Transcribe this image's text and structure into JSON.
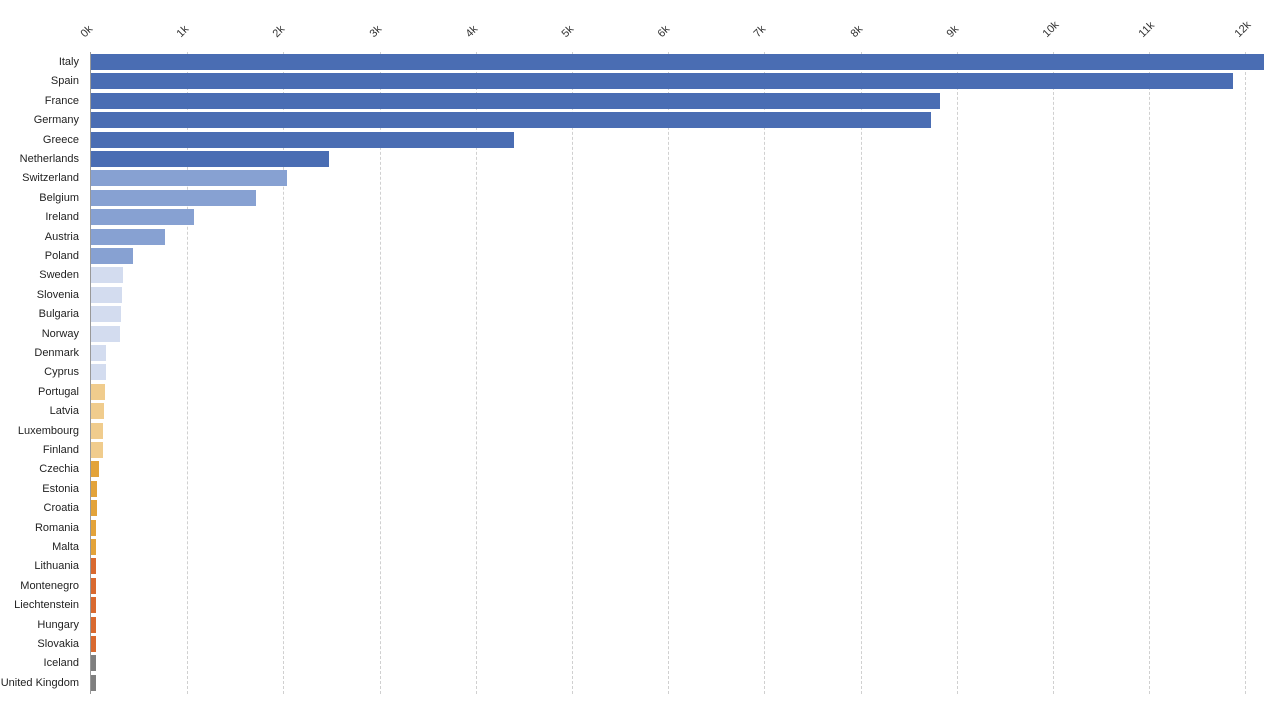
{
  "chart_data": {
    "type": "bar",
    "orientation": "horizontal",
    "title": "",
    "xlabel": "",
    "ylabel": "",
    "xlim": [
      0,
      12200
    ],
    "x_ticks": [
      "0k",
      "1k",
      "2k",
      "3k",
      "4k",
      "5k",
      "6k",
      "7k",
      "8k",
      "9k",
      "10k",
      "11k",
      "12k"
    ],
    "grid": true,
    "legend": null,
    "categories": [
      "Italy",
      "Spain",
      "France",
      "Germany",
      "Greece",
      "Netherlands",
      "Switzerland",
      "Belgium",
      "Ireland",
      "Austria",
      "Poland",
      "Sweden",
      "Slovenia",
      "Bulgaria",
      "Norway",
      "Denmark",
      "Cyprus",
      "Portugal",
      "Latvia",
      "Luxembourg",
      "Finland",
      "Czechia",
      "Estonia",
      "Croatia",
      "Romania",
      "Malta",
      "Lithuania",
      "Montenegro",
      "Liechtenstein",
      "Hungary",
      "Slovakia",
      "Iceland",
      "United Kingdom"
    ],
    "values": [
      12190,
      11870,
      8830,
      8730,
      4400,
      2470,
      2040,
      1710,
      1070,
      770,
      440,
      330,
      320,
      310,
      300,
      160,
      160,
      150,
      140,
      120,
      120,
      80,
      60,
      60,
      50,
      50,
      50,
      50,
      50,
      50,
      50,
      50,
      50
    ],
    "colors": [
      "#4a6db3",
      "#4a6db3",
      "#4a6db3",
      "#4a6db3",
      "#4a6db3",
      "#4a6db3",
      "#87a1d2",
      "#87a1d2",
      "#87a1d2",
      "#87a1d2",
      "#87a1d2",
      "#d3dcef",
      "#d3dcef",
      "#d3dcef",
      "#d3dcef",
      "#d3dcef",
      "#d3dcef",
      "#f0cc8d",
      "#f0cc8d",
      "#f0cc8d",
      "#f0cc8d",
      "#e3a33a",
      "#e3a33a",
      "#e3a33a",
      "#e3a33a",
      "#e3a33a",
      "#d9692f",
      "#d9692f",
      "#d9692f",
      "#d9692f",
      "#d9692f",
      "#7f7f7f",
      "#7f7f7f"
    ]
  }
}
